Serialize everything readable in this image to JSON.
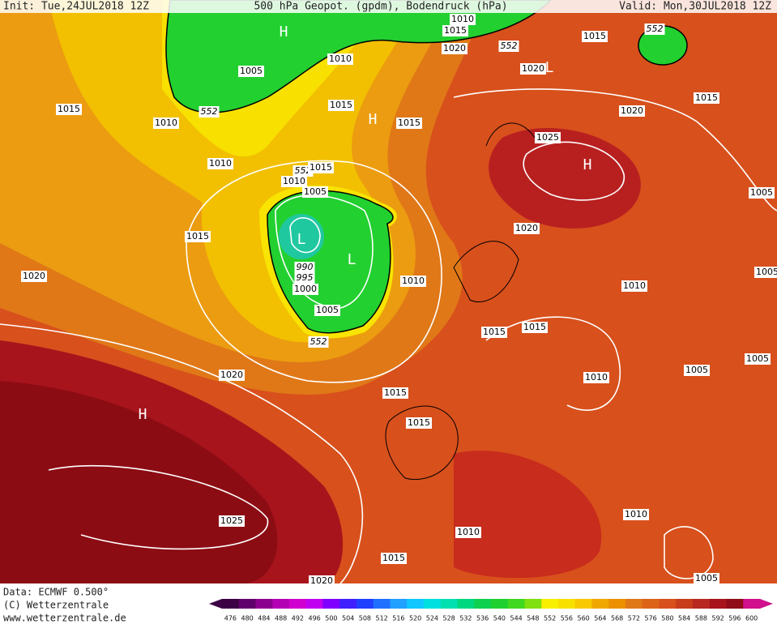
{
  "header": {
    "init": "Init: Tue,24JUL2018 12Z",
    "title": "500 hPa Geopot. (gpdm), Bodendruck (hPa)",
    "valid": "Valid: Mon,30JUL2018 12Z"
  },
  "map": {
    "isobar_labels": [
      "1010",
      "1015",
      "1020",
      "552",
      "1015",
      "552",
      "1020",
      "1005",
      "1010",
      "1015",
      "1010",
      "552",
      "1015",
      "1015",
      "1020",
      "1015",
      "1025",
      "1010",
      "552",
      "1015",
      "1010",
      "1005",
      "1005",
      "1015",
      "1020",
      "1020",
      "990",
      "995",
      "1000",
      "1010",
      "1005",
      "1010",
      "1005",
      "552",
      "1015",
      "1015",
      "1005",
      "1010",
      "1005",
      "1020",
      "1015",
      "1015",
      "1025",
      "1010",
      "1010",
      "1015",
      "1020",
      "1005"
    ],
    "centers": [
      "H",
      "H",
      "H",
      "H",
      "L",
      "L",
      "L"
    ]
  },
  "footer": {
    "data": "Data: ECMWF   0.500°",
    "copyright": "(C) Wetterzentrale",
    "url": "www.wetterzentrale.de"
  },
  "colorbar": {
    "labels": [
      476,
      480,
      484,
      488,
      492,
      496,
      500,
      504,
      508,
      512,
      516,
      520,
      524,
      528,
      532,
      536,
      540,
      544,
      548,
      552,
      556,
      560,
      564,
      568,
      572,
      576,
      580,
      584,
      588,
      592,
      596,
      600
    ]
  }
}
